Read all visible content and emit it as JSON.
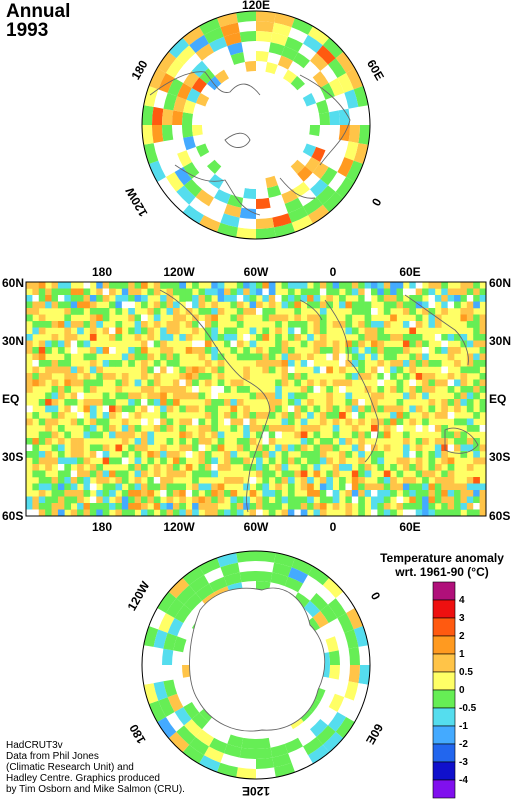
{
  "title": {
    "line1": "Annual",
    "line2": "1993"
  },
  "north_polar": {
    "labels": {
      "top": "120E",
      "right": "60E",
      "left": "180",
      "lower_left": "120W",
      "lower_right": "0"
    }
  },
  "mercator": {
    "x_labels": [
      "180",
      "120W",
      "60W",
      "0",
      "60E"
    ],
    "y_labels": [
      "60N",
      "30N",
      "EQ",
      "30S",
      "60S"
    ]
  },
  "south_polar": {
    "labels": {
      "upper_left": "120W",
      "upper_right": "0",
      "lower_left": "180",
      "lower_right": "60E",
      "bottom": "120E"
    }
  },
  "legend": {
    "title_line1": "Temperature anomaly",
    "title_line2": "wrt. 1961-90  (°C)",
    "unit": "°C",
    "levels": [
      {
        "label": "4",
        "color": "#b0107a"
      },
      {
        "label": "3",
        "color": "#ee1010"
      },
      {
        "label": "2",
        "color": "#ff5a10"
      },
      {
        "label": "1",
        "color": "#ff9a20"
      },
      {
        "label": "0.5",
        "color": "#ffc448"
      },
      {
        "label": "0",
        "color": "#ffff66"
      },
      {
        "label": "-0.5",
        "color": "#66ee55"
      },
      {
        "label": "-1",
        "color": "#55ddee"
      },
      {
        "label": "-2",
        "color": "#44aaff"
      },
      {
        "label": "-3",
        "color": "#2266ee"
      },
      {
        "label": "-4",
        "color": "#1010cc"
      },
      {
        "label": "",
        "color": "#8010ee"
      }
    ]
  },
  "credits": [
    "HadCRUT3v",
    "Data from Phil Jones",
    "(Climatic Research Unit) and",
    "Hadley Centre.  Graphics produced",
    "by Tim Osborn and Mike Salmon (CRU)."
  ]
}
